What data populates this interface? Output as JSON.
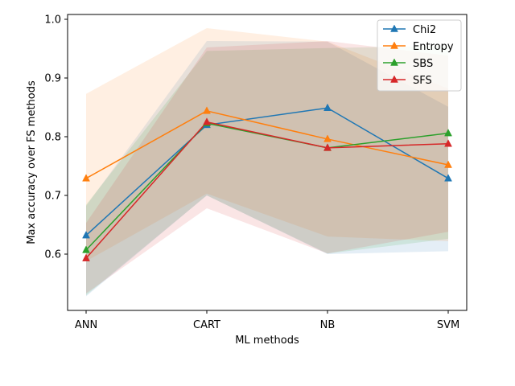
{
  "chart_data": {
    "type": "line",
    "title": "",
    "xlabel": "ML methods",
    "ylabel": "Max accuracy over FS methods",
    "categories": [
      "ANN",
      "CART",
      "NB",
      "SVM"
    ],
    "ylim": [
      0.5,
      1.0
    ],
    "yticks": [
      0.6,
      0.7,
      0.8,
      0.9,
      1.0
    ],
    "ytick_labels": [
      "0.6",
      "0.7",
      "0.8",
      "0.9",
      "1.0"
    ],
    "grid": false,
    "legend_position": "top-right",
    "series": [
      {
        "name": "Chi2",
        "color": "#1f77b4",
        "marker": "triangle-up",
        "values": [
          0.632,
          0.82,
          0.849,
          0.729
        ],
        "band_lower": [
          0.528,
          0.7,
          0.6,
          0.605
        ],
        "band_upper": [
          0.682,
          0.963,
          0.962,
          0.851
        ]
      },
      {
        "name": "Entropy",
        "color": "#ff7f0e",
        "marker": "triangle-up",
        "values": [
          0.729,
          0.844,
          0.796,
          0.752
        ],
        "band_lower": [
          0.588,
          0.703,
          0.63,
          0.622
        ],
        "band_upper": [
          0.873,
          0.985,
          0.962,
          0.882
        ]
      },
      {
        "name": "SBS",
        "color": "#2ca02c",
        "marker": "triangle-up",
        "values": [
          0.607,
          0.823,
          0.781,
          0.806
        ],
        "band_lower": [
          0.53,
          0.7,
          0.601,
          0.626
        ],
        "band_upper": [
          0.684,
          0.946,
          0.951,
          0.955
        ]
      },
      {
        "name": "SFS",
        "color": "#d62728",
        "marker": "triangle-up",
        "values": [
          0.593,
          0.825,
          0.781,
          0.788
        ],
        "band_lower": [
          0.533,
          0.678,
          0.601,
          0.638
        ],
        "band_upper": [
          0.653,
          0.952,
          0.963,
          0.938
        ]
      }
    ]
  }
}
